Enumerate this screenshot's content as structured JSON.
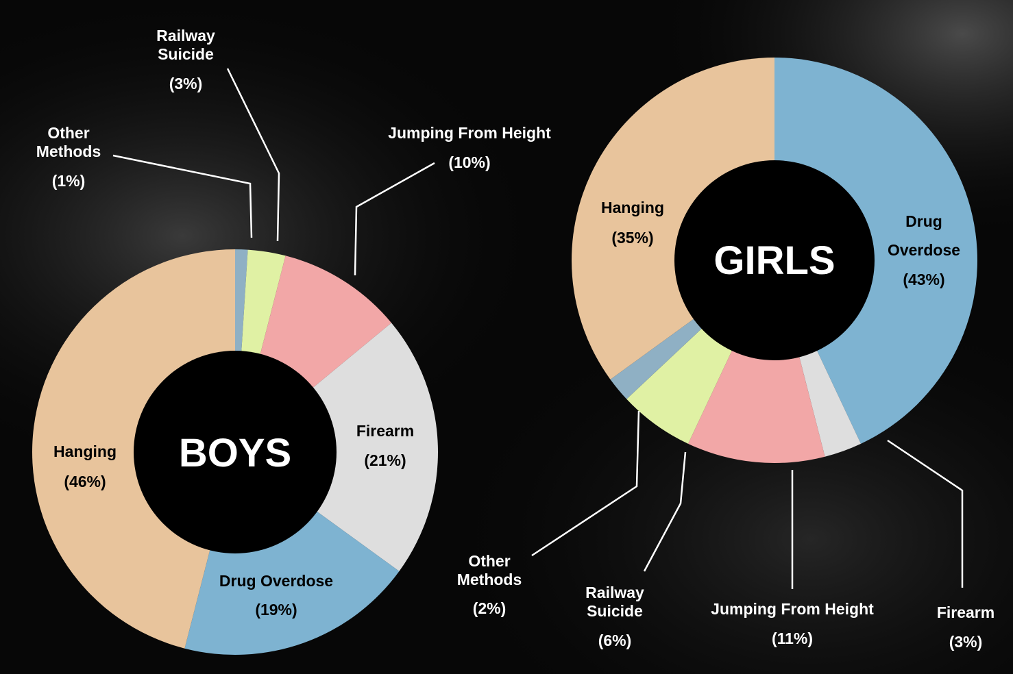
{
  "chart_data": [
    {
      "type": "pie",
      "donut": true,
      "title": "BOYS",
      "slices": [
        {
          "label": "Other Methods",
          "value_label": "(1%)",
          "value": 1,
          "color": "#8fb0c4",
          "label_position": "outside"
        },
        {
          "label": "Railway Suicide",
          "value_label": "(3%)",
          "value": 3,
          "color": "#e0f1a4",
          "label_position": "outside"
        },
        {
          "label": "Jumping From Height",
          "value_label": "(10%)",
          "value": 10,
          "color": "#f2a7a7",
          "label_position": "outside"
        },
        {
          "label": "Firearm",
          "value_label": "(21%)",
          "value": 21,
          "color": "#dedede",
          "label_position": "inside"
        },
        {
          "label": "Drug Overdose",
          "value_label": "(19%)",
          "value": 19,
          "color": "#7eb3d1",
          "label_position": "inside"
        },
        {
          "label": "Hanging",
          "value_label": "(46%)",
          "value": 46,
          "color": "#e8c49c",
          "label_position": "inside"
        }
      ]
    },
    {
      "type": "pie",
      "donut": true,
      "title": "GIRLS",
      "slices": [
        {
          "label": "Drug Overdose",
          "value_label": "(43%)",
          "value": 43,
          "color": "#7eb3d1",
          "label_position": "inside"
        },
        {
          "label": "Firearm",
          "value_label": "(3%)",
          "value": 3,
          "color": "#dedede",
          "label_position": "outside"
        },
        {
          "label": "Jumping From Height",
          "value_label": "(11%)",
          "value": 11,
          "color": "#f2a7a7",
          "label_position": "outside"
        },
        {
          "label": "Railway Suicide",
          "value_label": "(6%)",
          "value": 6,
          "color": "#e0f1a4",
          "label_position": "outside"
        },
        {
          "label": "Other Methods",
          "value_label": "(2%)",
          "value": 2,
          "color": "#8fb0c4",
          "label_position": "outside"
        },
        {
          "label": "Hanging",
          "value_label": "(35%)",
          "value": 35,
          "color": "#e8c49c",
          "label_position": "inside"
        }
      ]
    }
  ]
}
